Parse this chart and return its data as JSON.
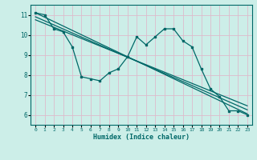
{
  "xlabel": "Humidex (Indice chaleur)",
  "background_color": "#cceee8",
  "grid_color": "#ddbbcc",
  "line_color": "#006868",
  "xlim": [
    -0.5,
    23.5
  ],
  "ylim": [
    5.5,
    11.5
  ],
  "xticks": [
    0,
    1,
    2,
    3,
    4,
    5,
    6,
    7,
    8,
    9,
    10,
    11,
    12,
    13,
    14,
    15,
    16,
    17,
    18,
    19,
    20,
    21,
    22,
    23
  ],
  "yticks": [
    6,
    7,
    8,
    9,
    10,
    11
  ],
  "main_x": [
    0,
    1,
    2,
    3,
    4,
    5,
    6,
    7,
    8,
    9,
    10,
    11,
    12,
    13,
    14,
    15,
    16,
    17,
    18,
    19,
    20,
    21,
    22,
    23
  ],
  "main_y": [
    11.1,
    11.0,
    10.3,
    10.15,
    9.4,
    7.9,
    7.8,
    7.7,
    8.1,
    8.3,
    8.9,
    9.9,
    9.5,
    9.9,
    10.3,
    10.3,
    9.7,
    9.4,
    8.3,
    7.3,
    6.9,
    6.2,
    6.2,
    6.0
  ],
  "trend_lines": [
    {
      "x0": 0,
      "y0": 11.1,
      "x1": 23,
      "y1": 6.05
    },
    {
      "x0": 0,
      "y0": 10.9,
      "x1": 23,
      "y1": 6.25
    },
    {
      "x0": 0,
      "y0": 10.75,
      "x1": 23,
      "y1": 6.45
    }
  ]
}
